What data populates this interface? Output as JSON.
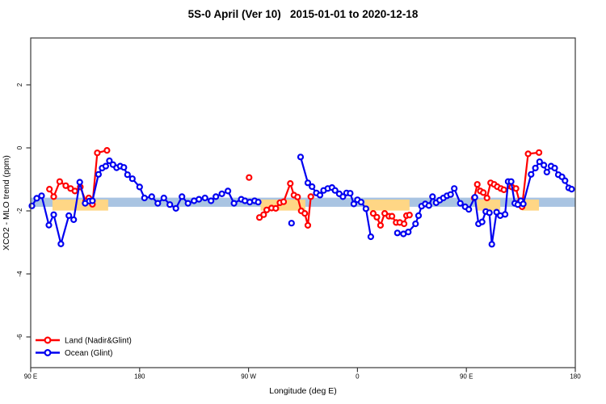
{
  "title": "5S-0 April (Ver 10)   2015-01-01 to 2020-12-18",
  "chart_data": {
    "type": "line",
    "title": "5S-0 April (Ver 10)   2015-01-01 to 2020-12-18",
    "xlabel": "Longitude (deg E)",
    "ylabel": "XCO2 - MLO trend (ppm)",
    "xlim": [
      90,
      540
    ],
    "ylim": [
      -7,
      3.5
    ],
    "grid": false,
    "legend_position": "bottom-left",
    "x_ticks": [
      {
        "value": 90,
        "label": "90 E"
      },
      {
        "value": 180,
        "label": "180"
      },
      {
        "value": 270,
        "label": "90 W"
      },
      {
        "value": 360,
        "label": "0"
      },
      {
        "value": 450,
        "label": "90 E"
      },
      {
        "value": 540,
        "label": "180"
      }
    ],
    "y_ticks": [
      {
        "value": 2,
        "label": "2"
      },
      {
        "value": 0,
        "label": "0"
      },
      {
        "value": -2,
        "label": "-2"
      },
      {
        "value": -4,
        "label": "-4"
      },
      {
        "value": -6,
        "label": "-6"
      }
    ],
    "bands": [
      {
        "name": "ocean-mean-band",
        "color": "#a9c4e2",
        "x_ranges": [
          [
            90,
            540
          ]
        ],
        "y_range": [
          -1.58,
          -1.87
        ]
      },
      {
        "name": "land-mean-band",
        "color": "#ffd685",
        "x_ranges": [
          [
            108,
            154
          ],
          [
            280,
            317
          ],
          [
            366,
            403
          ],
          [
            459,
            478
          ],
          [
            496,
            510
          ]
        ],
        "y_range": [
          -1.64,
          -1.99
        ]
      }
    ],
    "series": [
      {
        "name": "Land (Nadir&Glint)",
        "color": "#ff0000",
        "marker": "open-circle",
        "segments": [
          [
            [
              105.5,
              -1.31
            ],
            [
              109,
              -1.55
            ],
            [
              114,
              -1.07
            ],
            [
              119,
              -1.2
            ],
            [
              123,
              -1.29
            ],
            [
              126.5,
              -1.37
            ],
            [
              131,
              -1.24
            ],
            [
              135.5,
              -1.69
            ],
            [
              138,
              -1.59
            ],
            [
              141,
              -1.79
            ],
            [
              145,
              -0.16
            ],
            [
              153,
              -0.08
            ]
          ],
          [
            [
              279,
              -2.21
            ],
            [
              282.5,
              -2.12
            ],
            [
              285,
              -1.97
            ],
            [
              289,
              -1.91
            ],
            [
              292.5,
              -1.92
            ],
            [
              296,
              -1.74
            ],
            [
              299,
              -1.71
            ],
            [
              304.5,
              -1.13
            ],
            [
              307.5,
              -1.5
            ],
            [
              310.5,
              -1.56
            ],
            [
              313.5,
              -2.0
            ],
            [
              316.5,
              -2.08
            ],
            [
              319,
              -2.46
            ],
            [
              321.5,
              -1.55
            ]
          ],
          [
            [
              373,
              -2.08
            ],
            [
              376,
              -2.2
            ],
            [
              379,
              -2.46
            ],
            [
              382.5,
              -2.08
            ],
            [
              386,
              -2.17
            ],
            [
              388.5,
              -2.17
            ],
            [
              392,
              -2.37
            ],
            [
              395,
              -2.37
            ],
            [
              398.5,
              -2.41
            ],
            [
              400.5,
              -2.15
            ],
            [
              403,
              -2.13
            ]
          ],
          [
            [
              456.5,
              -1.59
            ],
            [
              459,
              -1.16
            ],
            [
              461.5,
              -1.37
            ],
            [
              464,
              -1.42
            ],
            [
              467,
              -1.59
            ],
            [
              470,
              -1.11
            ],
            [
              473,
              -1.16
            ],
            [
              475.5,
              -1.23
            ],
            [
              478.5,
              -1.29
            ],
            [
              481,
              -1.33
            ],
            [
              487.5,
              -1.24
            ],
            [
              491,
              -1.29
            ],
            [
              494,
              -1.72
            ],
            [
              496,
              -1.87
            ],
            [
              501,
              -0.19
            ],
            [
              510,
              -0.15
            ]
          ]
        ],
        "isolated_points": [
          [
            270.5,
            -0.94
          ]
        ]
      },
      {
        "name": "Ocean (Glint)",
        "color": "#0000f0",
        "marker": "open-circle",
        "segments": [
          [
            [
              91,
              -1.84
            ],
            [
              95,
              -1.6
            ],
            [
              99,
              -1.52
            ],
            [
              105,
              -2.45
            ],
            [
              109,
              -2.12
            ],
            [
              115,
              -3.05
            ],
            [
              121.5,
              -2.15
            ],
            [
              125.5,
              -2.28
            ],
            [
              130.5,
              -1.09
            ],
            [
              135,
              -1.76
            ],
            [
              138.5,
              -1.69
            ],
            [
              141,
              -1.68
            ],
            [
              146,
              -0.84
            ],
            [
              149,
              -0.64
            ],
            [
              152,
              -0.58
            ],
            [
              155,
              -0.41
            ],
            [
              158,
              -0.53
            ],
            [
              161,
              -0.63
            ],
            [
              164,
              -0.58
            ],
            [
              167,
              -0.62
            ],
            [
              170,
              -0.85
            ],
            [
              174,
              -0.98
            ],
            [
              180,
              -1.24
            ],
            [
              184,
              -1.59
            ],
            [
              190,
              -1.55
            ],
            [
              195,
              -1.76
            ],
            [
              200,
              -1.59
            ],
            [
              205,
              -1.8
            ],
            [
              210,
              -1.92
            ],
            [
              215,
              -1.55
            ],
            [
              220,
              -1.76
            ],
            [
              225,
              -1.68
            ],
            [
              229,
              -1.63
            ],
            [
              234,
              -1.59
            ],
            [
              239,
              -1.68
            ],
            [
              243,
              -1.55
            ],
            [
              248,
              -1.46
            ],
            [
              253,
              -1.37
            ],
            [
              258,
              -1.76
            ],
            [
              264,
              -1.63
            ],
            [
              267,
              -1.68
            ],
            [
              271,
              -1.72
            ],
            [
              275,
              -1.68
            ],
            [
              278,
              -1.72
            ]
          ],
          [
            [
              313,
              -0.29
            ],
            [
              319,
              -1.11
            ],
            [
              322.5,
              -1.23
            ],
            [
              326,
              -1.43
            ],
            [
              329,
              -1.5
            ],
            [
              332,
              -1.35
            ],
            [
              335.5,
              -1.29
            ],
            [
              339,
              -1.26
            ],
            [
              341.5,
              -1.35
            ],
            [
              345,
              -1.46
            ],
            [
              348,
              -1.55
            ],
            [
              351,
              -1.43
            ],
            [
              354,
              -1.44
            ],
            [
              357,
              -1.78
            ],
            [
              360,
              -1.65
            ],
            [
              363,
              -1.72
            ],
            [
              367,
              -1.93
            ],
            [
              371,
              -2.82
            ]
          ],
          [
            [
              393,
              -2.7
            ],
            [
              398,
              -2.73
            ],
            [
              402,
              -2.67
            ],
            [
              408,
              -2.41
            ],
            [
              410.5,
              -2.15
            ],
            [
              413,
              -1.85
            ],
            [
              416,
              -1.78
            ],
            [
              419,
              -1.83
            ],
            [
              422,
              -1.55
            ],
            [
              425,
              -1.74
            ],
            [
              428,
              -1.66
            ],
            [
              431,
              -1.59
            ],
            [
              434,
              -1.52
            ],
            [
              437,
              -1.48
            ],
            [
              440,
              -1.29
            ],
            [
              445,
              -1.76
            ],
            [
              449,
              -1.87
            ],
            [
              452,
              -1.95
            ],
            [
              457,
              -1.57
            ],
            [
              460,
              -2.41
            ],
            [
              463,
              -2.35
            ],
            [
              466,
              -2.02
            ],
            [
              469,
              -2.06
            ],
            [
              471,
              -3.06
            ],
            [
              475,
              -2.04
            ],
            [
              478,
              -2.15
            ],
            [
              482,
              -2.11
            ],
            [
              484.5,
              -1.07
            ],
            [
              487,
              -1.07
            ],
            [
              490,
              -1.76
            ],
            [
              492.5,
              -1.8
            ],
            [
              495,
              -1.68
            ],
            [
              497,
              -1.78
            ],
            [
              503.5,
              -0.84
            ],
            [
              507,
              -0.64
            ],
            [
              510.5,
              -0.44
            ],
            [
              514,
              -0.55
            ],
            [
              516.5,
              -0.77
            ],
            [
              520,
              -0.58
            ],
            [
              523,
              -0.64
            ],
            [
              526,
              -0.85
            ],
            [
              529,
              -0.92
            ],
            [
              531.5,
              -1.04
            ],
            [
              534.5,
              -1.27
            ],
            [
              537,
              -1.31
            ]
          ]
        ],
        "isolated_points": [
          [
            305.5,
            -2.39
          ]
        ]
      }
    ],
    "legend": {
      "entries": [
        "Land (Nadir&Glint)",
        "Ocean (Glint)"
      ]
    },
    "style": {
      "axis_color": "#3a3a3a",
      "line_width": 2.2,
      "marker_radius": 3.0,
      "marker_fill": "#ffffff"
    }
  }
}
